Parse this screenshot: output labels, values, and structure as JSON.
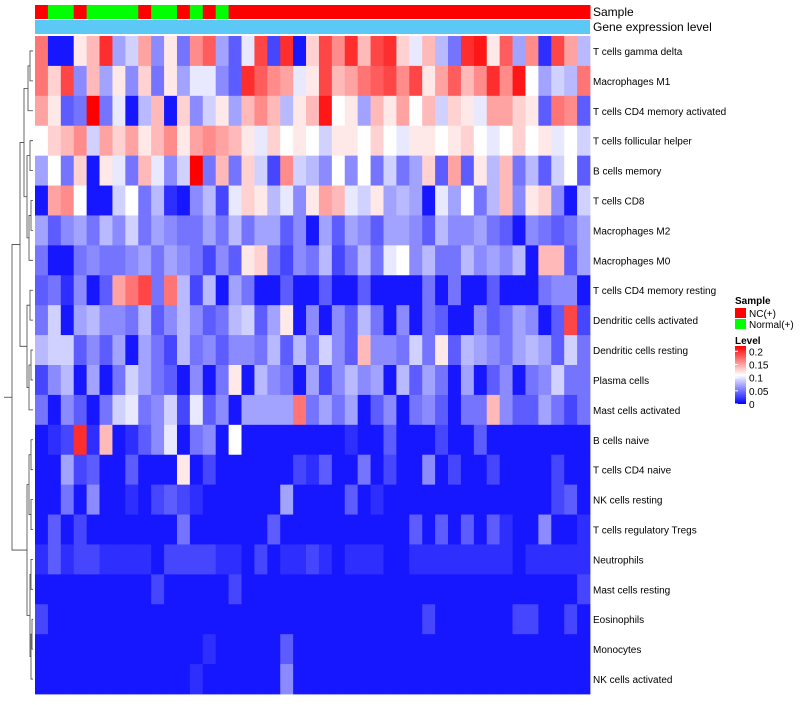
{
  "chart_data": {
    "type": "heatmap",
    "annotation_tracks": [
      "Sample",
      "Gene expression level"
    ],
    "sample_groups": [
      "NC(+)",
      "Normal(+)"
    ],
    "sample_annotation": [
      0,
      1,
      1,
      0,
      1,
      1,
      1,
      1,
      0,
      1,
      1,
      0,
      1,
      0,
      1,
      0,
      0,
      0,
      0,
      0,
      0,
      0,
      0,
      0,
      0,
      0,
      0,
      0,
      0,
      0,
      0,
      0,
      0,
      0,
      0,
      0,
      0,
      0,
      0,
      0,
      0,
      0,
      0
    ],
    "expression_level_color": "#5bc8f5",
    "cell_types": [
      "T cells gamma delta",
      "Macrophages M1",
      "T cells CD4 memory activated",
      "T cells follicular helper",
      "B cells memory",
      "T cells CD8",
      "Macrophages M2",
      "Macrophages M0",
      "T cells CD4 memory resting",
      "Dendritic cells activated",
      "Dendritic cells resting",
      "Plasma cells",
      "Mast cells activated",
      "B cells naive",
      "T cells CD4 naive",
      "NK cells resting",
      "T cells regulatory  Tregs",
      "Neutrophils",
      "Mast cells resting",
      "Eosinophils",
      "Monocytes",
      "NK cells activated"
    ],
    "values": [
      [
        0.17,
        0.01,
        0.01,
        0.12,
        0.14,
        0.2,
        0.07,
        0.09,
        0.15,
        0.06,
        0.12,
        0.05,
        0.16,
        0.18,
        0.07,
        0.04,
        0.1,
        0.19,
        0.03,
        0.2,
        0.01,
        0.13,
        0.19,
        0.16,
        0.2,
        0.14,
        0.19,
        0.2,
        0.13,
        0.1,
        0.14,
        0.08,
        0.05,
        0.2,
        0.21,
        0.12,
        0.18,
        0.07,
        0.16,
        0.02,
        0.19,
        0.15,
        0.08
      ],
      [
        0.17,
        0.13,
        0.19,
        0.06,
        0.14,
        0.07,
        0.12,
        0.06,
        0.13,
        0.05,
        0.12,
        0.07,
        0.1,
        0.1,
        0.06,
        0.04,
        0.2,
        0.18,
        0.16,
        0.15,
        0.1,
        0.12,
        0.19,
        0.14,
        0.15,
        0.17,
        0.18,
        0.19,
        0.16,
        0.19,
        0.12,
        0.15,
        0.18,
        0.14,
        0.16,
        0.2,
        0.16,
        0.21,
        0.11,
        0.07,
        0.09,
        0.08,
        0.17
      ],
      [
        0.15,
        0.12,
        0.04,
        0.05,
        0.22,
        0.05,
        0.1,
        0.01,
        0.08,
        0.14,
        0.01,
        0.13,
        0.06,
        0.09,
        0.12,
        0.07,
        0.14,
        0.16,
        0.14,
        0.08,
        0.12,
        0.14,
        0.21,
        0.11,
        0.12,
        0.07,
        0.14,
        0.12,
        0.15,
        0.11,
        0.14,
        0.09,
        0.13,
        0.12,
        0.1,
        0.15,
        0.15,
        0.13,
        0.12,
        0.04,
        0.17,
        0.16,
        0.04
      ],
      [
        0.11,
        0.13,
        0.14,
        0.16,
        0.09,
        0.15,
        0.13,
        0.15,
        0.12,
        0.14,
        0.16,
        0.12,
        0.15,
        0.16,
        0.15,
        0.14,
        0.12,
        0.1,
        0.13,
        0.11,
        0.12,
        0.11,
        0.09,
        0.12,
        0.12,
        0.11,
        0.13,
        0.11,
        0.1,
        0.12,
        0.12,
        0.11,
        0.12,
        0.13,
        0.11,
        0.1,
        0.11,
        0.13,
        0.11,
        0.12,
        0.1,
        0.11,
        0.09
      ],
      [
        0.07,
        0.11,
        0.05,
        0.13,
        0.01,
        0.12,
        0.1,
        0.05,
        0.14,
        0.1,
        0.06,
        0.09,
        0.22,
        0.05,
        0.14,
        0.05,
        0.13,
        0.09,
        0.03,
        0.16,
        0.09,
        0.08,
        0.06,
        0.11,
        0.06,
        0.11,
        0.05,
        0.09,
        0.05,
        0.07,
        0.13,
        0.04,
        0.15,
        0.04,
        0.12,
        0.08,
        0.14,
        0.05,
        0.08,
        0.04,
        0.09,
        0.11,
        0.04
      ],
      [
        0.01,
        0.15,
        0.16,
        0.11,
        0.01,
        0.01,
        0.09,
        0.11,
        0.05,
        0.08,
        0.02,
        0.01,
        0.06,
        0.08,
        0.03,
        0.1,
        0.13,
        0.12,
        0.08,
        0.1,
        0.06,
        0.12,
        0.15,
        0.14,
        0.1,
        0.09,
        0.12,
        0.07,
        0.08,
        0.07,
        0.01,
        0.1,
        0.07,
        0.11,
        0.05,
        0.08,
        0.14,
        0.06,
        0.12,
        0.13,
        0.06,
        0.01,
        0.09
      ],
      [
        0.07,
        0.04,
        0.06,
        0.07,
        0.05,
        0.08,
        0.06,
        0.09,
        0.05,
        0.07,
        0.06,
        0.05,
        0.05,
        0.07,
        0.05,
        0.08,
        0.05,
        0.07,
        0.07,
        0.04,
        0.06,
        0.01,
        0.07,
        0.04,
        0.07,
        0.06,
        0.04,
        0.07,
        0.07,
        0.06,
        0.04,
        0.08,
        0.06,
        0.06,
        0.07,
        0.05,
        0.04,
        0.01,
        0.06,
        0.05,
        0.04,
        0.05,
        0.07
      ],
      [
        0.05,
        0.01,
        0.01,
        0.05,
        0.06,
        0.05,
        0.05,
        0.06,
        0.07,
        0.05,
        0.07,
        0.06,
        0.05,
        0.03,
        0.06,
        0.04,
        0.12,
        0.13,
        0.05,
        0.03,
        0.06,
        0.05,
        0.08,
        0.03,
        0.05,
        0.08,
        0.05,
        0.1,
        0.11,
        0.06,
        0.08,
        0.05,
        0.05,
        0.08,
        0.06,
        0.07,
        0.06,
        0.08,
        0.01,
        0.14,
        0.14,
        0.04,
        0.07
      ],
      [
        0.04,
        0.05,
        0.02,
        0.06,
        0.01,
        0.04,
        0.15,
        0.17,
        0.19,
        0.05,
        0.17,
        0.08,
        0.03,
        0.08,
        0.01,
        0.07,
        0.05,
        0.01,
        0.01,
        0.04,
        0.01,
        0.01,
        0.04,
        0.01,
        0.01,
        0.04,
        0.01,
        0.01,
        0.01,
        0.01,
        0.05,
        0.01,
        0.05,
        0.01,
        0.01,
        0.04,
        0.01,
        0.01,
        0.01,
        0.05,
        0.06,
        0.06,
        0.01
      ],
      [
        0.05,
        0.09,
        0.01,
        0.07,
        0.08,
        0.06,
        0.06,
        0.05,
        0.08,
        0.04,
        0.06,
        0.08,
        0.06,
        0.04,
        0.05,
        0.08,
        0.09,
        0.04,
        0.07,
        0.12,
        0.01,
        0.06,
        0.01,
        0.06,
        0.04,
        0.08,
        0.05,
        0.01,
        0.06,
        0.01,
        0.05,
        0.04,
        0.01,
        0.01,
        0.06,
        0.04,
        0.05,
        0.07,
        0.06,
        0.01,
        0.04,
        0.19,
        0.03
      ],
      [
        0.08,
        0.09,
        0.09,
        0.04,
        0.06,
        0.04,
        0.07,
        0.01,
        0.07,
        0.05,
        0.03,
        0.08,
        0.05,
        0.06,
        0.04,
        0.06,
        0.06,
        0.05,
        0.08,
        0.04,
        0.08,
        0.05,
        0.09,
        0.06,
        0.04,
        0.14,
        0.06,
        0.06,
        0.05,
        0.09,
        0.05,
        0.12,
        0.04,
        0.08,
        0.07,
        0.06,
        0.05,
        0.07,
        0.08,
        0.07,
        0.04,
        0.09,
        0.05
      ],
      [
        0.03,
        0.06,
        0.08,
        0.01,
        0.07,
        0.01,
        0.05,
        0.09,
        0.07,
        0.05,
        0.04,
        0.01,
        0.06,
        0.01,
        0.05,
        0.12,
        0.01,
        0.08,
        0.06,
        0.05,
        0.01,
        0.07,
        0.03,
        0.06,
        0.08,
        0.06,
        0.07,
        0.01,
        0.08,
        0.04,
        0.07,
        0.05,
        0.01,
        0.07,
        0.01,
        0.04,
        0.06,
        0.01,
        0.05,
        0.06,
        0.09,
        0.05,
        0.05
      ],
      [
        0.05,
        0.01,
        0.06,
        0.04,
        0.01,
        0.05,
        0.09,
        0.1,
        0.05,
        0.06,
        0.09,
        0.03,
        0.1,
        0.04,
        0.06,
        0.01,
        0.07,
        0.07,
        0.07,
        0.07,
        0.17,
        0.05,
        0.07,
        0.05,
        0.07,
        0.01,
        0.04,
        0.06,
        0.01,
        0.05,
        0.06,
        0.04,
        0.01,
        0.05,
        0.05,
        0.14,
        0.06,
        0.04,
        0.04,
        0.07,
        0.05,
        0.03,
        0.05
      ],
      [
        0.01,
        0.02,
        0.03,
        0.2,
        0.02,
        0.14,
        0.01,
        0.02,
        0.04,
        0.06,
        0.1,
        0.01,
        0.05,
        0.06,
        0.01,
        0.11,
        0.01,
        0.01,
        0.01,
        0.01,
        0.01,
        0.01,
        0.01,
        0.01,
        0.02,
        0.01,
        0.01,
        0.04,
        0.01,
        0.01,
        0.01,
        0.03,
        0.01,
        0.01,
        0.04,
        0.01,
        0.01,
        0.01,
        0.01,
        0.01,
        0.01,
        0.01,
        0.01
      ],
      [
        0.01,
        0.01,
        0.07,
        0.03,
        0.04,
        0.01,
        0.01,
        0.04,
        0.01,
        0.01,
        0.01,
        0.12,
        0.01,
        0.03,
        0.01,
        0.01,
        0.01,
        0.01,
        0.01,
        0.01,
        0.03,
        0.02,
        0.04,
        0.01,
        0.01,
        0.05,
        0.01,
        0.03,
        0.01,
        0.01,
        0.06,
        0.01,
        0.03,
        0.01,
        0.01,
        0.03,
        0.01,
        0.01,
        0.01,
        0.01,
        0.03,
        0.01,
        0.01
      ],
      [
        0.01,
        0.01,
        0.05,
        0.01,
        0.06,
        0.01,
        0.01,
        0.02,
        0.01,
        0.03,
        0.04,
        0.03,
        0.02,
        0.01,
        0.01,
        0.01,
        0.01,
        0.01,
        0.01,
        0.07,
        0.01,
        0.01,
        0.01,
        0.01,
        0.04,
        0.01,
        0.02,
        0.01,
        0.01,
        0.01,
        0.01,
        0.01,
        0.01,
        0.01,
        0.01,
        0.01,
        0.01,
        0.01,
        0.01,
        0.01,
        0.03,
        0.04,
        0.01
      ],
      [
        0.01,
        0.04,
        0.01,
        0.03,
        0.01,
        0.01,
        0.01,
        0.01,
        0.01,
        0.01,
        0.01,
        0.05,
        0.01,
        0.01,
        0.01,
        0.01,
        0.01,
        0.01,
        0.04,
        0.01,
        0.01,
        0.01,
        0.01,
        0.01,
        0.01,
        0.01,
        0.01,
        0.01,
        0.01,
        0.04,
        0.01,
        0.04,
        0.01,
        0.04,
        0.01,
        0.04,
        0.02,
        0.01,
        0.01,
        0.06,
        0.01,
        0.01,
        0.02
      ],
      [
        0.02,
        0.04,
        0.02,
        0.03,
        0.03,
        0.02,
        0.02,
        0.02,
        0.02,
        0.01,
        0.03,
        0.03,
        0.03,
        0.03,
        0.02,
        0.02,
        0.01,
        0.03,
        0.01,
        0.02,
        0.02,
        0.03,
        0.02,
        0.01,
        0.02,
        0.02,
        0.02,
        0.01,
        0.01,
        0.02,
        0.02,
        0.02,
        0.02,
        0.02,
        0.02,
        0.02,
        0.02,
        0.01,
        0.02,
        0.02,
        0.02,
        0.02,
        0.02
      ],
      [
        0.01,
        0.01,
        0.01,
        0.01,
        0.01,
        0.01,
        0.01,
        0.01,
        0.01,
        0.03,
        0.01,
        0.01,
        0.01,
        0.01,
        0.01,
        0.03,
        0.01,
        0.01,
        0.01,
        0.01,
        0.01,
        0.01,
        0.01,
        0.01,
        0.01,
        0.01,
        0.01,
        0.01,
        0.01,
        0.01,
        0.01,
        0.01,
        0.01,
        0.01,
        0.01,
        0.01,
        0.01,
        0.01,
        0.01,
        0.01,
        0.01,
        0.01,
        0.03
      ],
      [
        0.03,
        0.01,
        0.01,
        0.01,
        0.01,
        0.01,
        0.01,
        0.01,
        0.01,
        0.01,
        0.01,
        0.01,
        0.01,
        0.01,
        0.01,
        0.01,
        0.01,
        0.01,
        0.01,
        0.01,
        0.01,
        0.01,
        0.01,
        0.01,
        0.01,
        0.01,
        0.01,
        0.01,
        0.01,
        0.01,
        0.03,
        0.01,
        0.01,
        0.01,
        0.01,
        0.01,
        0.01,
        0.03,
        0.03,
        0.01,
        0.01,
        0.03,
        0.01
      ],
      [
        0.01,
        0.01,
        0.01,
        0.01,
        0.01,
        0.01,
        0.01,
        0.01,
        0.01,
        0.01,
        0.01,
        0.01,
        0.01,
        0.02,
        0.01,
        0.01,
        0.01,
        0.01,
        0.01,
        0.04,
        0.01,
        0.01,
        0.01,
        0.01,
        0.01,
        0.01,
        0.01,
        0.01,
        0.01,
        0.01,
        0.01,
        0.01,
        0.01,
        0.01,
        0.01,
        0.01,
        0.01,
        0.01,
        0.01,
        0.01,
        0.01,
        0.01,
        0.01
      ],
      [
        0.01,
        0.01,
        0.01,
        0.01,
        0.01,
        0.01,
        0.01,
        0.01,
        0.01,
        0.01,
        0.01,
        0.01,
        0.02,
        0.01,
        0.01,
        0.01,
        0.01,
        0.01,
        0.01,
        0.06,
        0.01,
        0.01,
        0.01,
        0.01,
        0.01,
        0.01,
        0.01,
        0.01,
        0.01,
        0.01,
        0.01,
        0.01,
        0.01,
        0.01,
        0.01,
        0.01,
        0.01,
        0.01,
        0.01,
        0.01,
        0.01,
        0.01,
        0.01
      ]
    ],
    "color_scale": {
      "low": "#0000ff",
      "mid": "#ffffff",
      "high": "#ff0000",
      "min": 0,
      "mid_value": 0.11,
      "max": 0.22
    },
    "legend_sample": {
      "title": "Sample",
      "entries": [
        {
          "label": "NC(+)",
          "color": "#ff0000"
        },
        {
          "label": "Normal(+)",
          "color": "#00ff00"
        }
      ]
    },
    "legend_level": {
      "title": "Level",
      "ticks": [
        "0.2",
        "0.15",
        "0.1",
        "0.05",
        "0"
      ],
      "tick_values": [
        0.2,
        0.15,
        0.1,
        0.05,
        0
      ]
    }
  }
}
